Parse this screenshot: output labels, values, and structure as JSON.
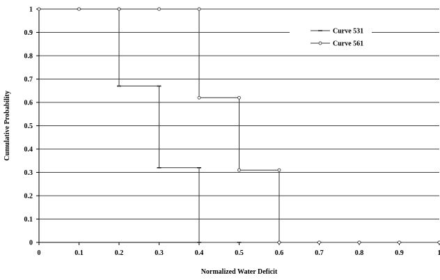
{
  "chart_data": {
    "type": "line",
    "title": "",
    "xlabel": "Normalized Water Deficit",
    "ylabel": "Cumulative Probability",
    "xlim": [
      0,
      1
    ],
    "ylim": [
      0,
      1
    ],
    "grid": "horizontal",
    "legend_position": "top-right",
    "x_ticks": [
      "0",
      "0.1",
      "0.2",
      "0.3",
      "0.4",
      "0.5",
      "0.6",
      "0.7",
      "0.8",
      "0.9",
      "1"
    ],
    "y_ticks": [
      "0",
      "0.1",
      "0.2",
      "0.3",
      "0.4",
      "0.5",
      "0.6",
      "0.7",
      "0.8",
      "0.9",
      "1"
    ],
    "series": [
      {
        "name": "Curve 531",
        "color": "#555555",
        "marker": "dash",
        "x": [
          0,
          0.1,
          0.2,
          0.2,
          0.3,
          0.3,
          0.4,
          0.4,
          0.5,
          0.6,
          0.7,
          0.8,
          0.9,
          1
        ],
        "y": [
          1,
          1,
          1,
          0.67,
          0.67,
          0.32,
          0.32,
          0,
          0,
          0,
          0,
          0,
          0,
          0
        ]
      },
      {
        "name": "Curve 561",
        "color": "#555555",
        "marker": "circle",
        "x": [
          0,
          0.1,
          0.2,
          0.3,
          0.4,
          0.4,
          0.5,
          0.5,
          0.6,
          0.6,
          0.7,
          0.8,
          0.9,
          1
        ],
        "y": [
          1,
          1,
          1,
          1,
          1,
          0.62,
          0.62,
          0.31,
          0.31,
          0,
          0,
          0,
          0,
          0
        ]
      }
    ]
  }
}
